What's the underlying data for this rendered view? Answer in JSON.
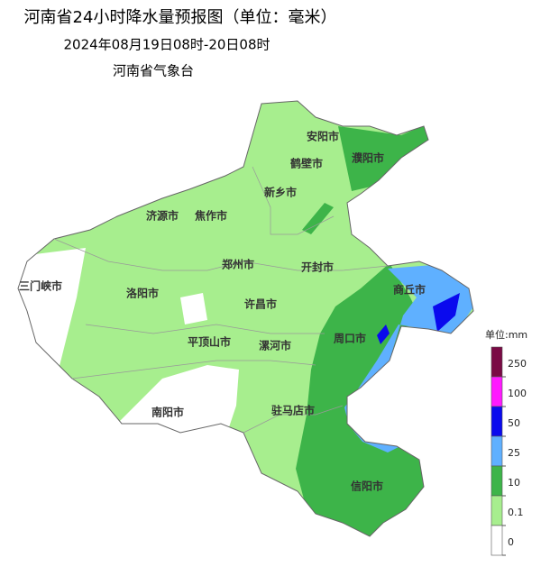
{
  "header": {
    "title": "河南省24小时降水量预报图（单位：毫米）",
    "subtitle": "2024年08月19日08时-20日08时",
    "agency": "河南省气象台"
  },
  "cities": [
    "安阳市",
    "鹤壁市",
    "濮阳市",
    "新乡市",
    "济源市",
    "焦作市",
    "郑州市",
    "开封市",
    "三门峡市",
    "洛阳市",
    "许昌市",
    "商丘市",
    "周口市",
    "平顶山市",
    "漯河市",
    "南阳市",
    "驻马店市",
    "信阳市"
  ],
  "legend": {
    "title": "单位:mm",
    "ticks": [
      250,
      100,
      50,
      25,
      10,
      0.1,
      0
    ],
    "colors": [
      "#7a0a45",
      "#ff1aff",
      "#0a0aee",
      "#5fb0ff",
      "#3db449",
      "#a7ee8e",
      "#ffffff"
    ]
  }
}
